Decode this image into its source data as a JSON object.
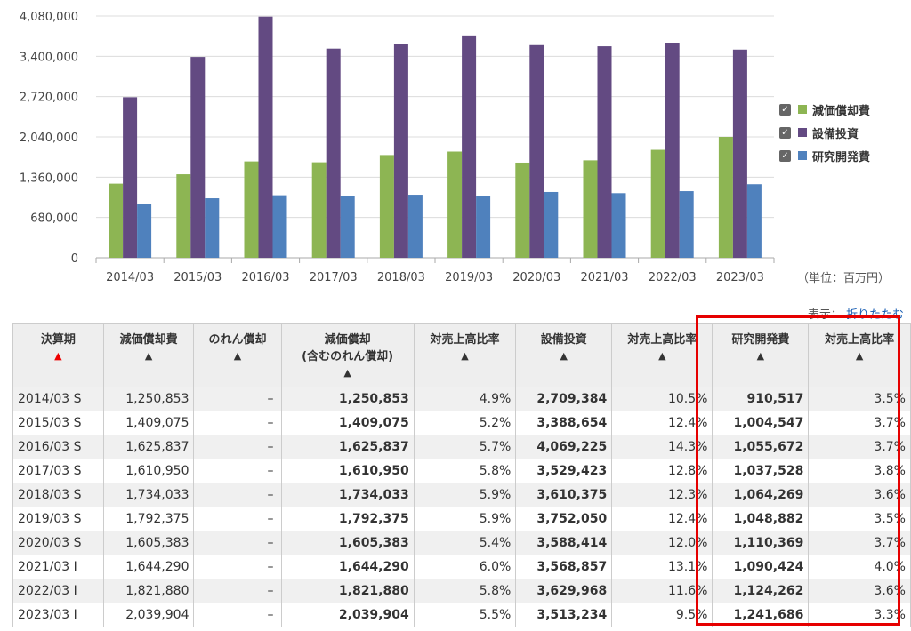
{
  "chart_data": {
    "type": "bar",
    "categories": [
      "2014/03",
      "2015/03",
      "2016/03",
      "2017/03",
      "2018/03",
      "2019/03",
      "2020/03",
      "2021/03",
      "2022/03",
      "2023/03"
    ],
    "series": [
      {
        "name": "減価償却費",
        "color": "#8db553",
        "values": [
          1250853,
          1409075,
          1625837,
          1610950,
          1734033,
          1792375,
          1605383,
          1644290,
          1821880,
          2039904
        ]
      },
      {
        "name": "設備投資",
        "color": "#634a82",
        "values": [
          2709384,
          3388654,
          4069225,
          3529423,
          3610375,
          3752050,
          3588414,
          3568857,
          3629968,
          3513234
        ]
      },
      {
        "name": "研究開発費",
        "color": "#4f81bd",
        "values": [
          910517,
          1004547,
          1055672,
          1037528,
          1064269,
          1048882,
          1110369,
          1090424,
          1124262,
          1241686
        ]
      }
    ],
    "yticks": [
      "0",
      "680,000",
      "1,360,000",
      "2,040,000",
      "2,720,000",
      "3,400,000",
      "4,080,000"
    ],
    "ylim": [
      0,
      4080000
    ],
    "grid": true,
    "legend_position": "right"
  },
  "legend": [
    {
      "label": "減価償却費",
      "check": "✓"
    },
    {
      "label": "設備投資",
      "check": "✓"
    },
    {
      "label": "研究開発費",
      "check": "✓"
    }
  ],
  "unit_label": "（単位：百万円）",
  "display": {
    "label": "表示：",
    "link": "折りたたむ"
  },
  "table": {
    "headers": [
      {
        "label": "決算期",
        "sort": "▲",
        "red": true
      },
      {
        "label": "減価償却費",
        "sort": "▲"
      },
      {
        "label": "のれん償却",
        "sort": "▲"
      },
      {
        "label": "減価償却\n(含むのれん償却)",
        "sort": "▲"
      },
      {
        "label": "対売上高比率",
        "sort": "▲"
      },
      {
        "label": "設備投資",
        "sort": "▲"
      },
      {
        "label": "対売上高比率",
        "sort": "▲"
      },
      {
        "label": "研究開発費",
        "sort": "▲"
      },
      {
        "label": "対売上高比率",
        "sort": "▲"
      }
    ],
    "rows": [
      [
        "2014/03 S",
        "1,250,853",
        "–",
        "1,250,853",
        "4.9%",
        "2,709,384",
        "10.5%",
        "910,517",
        "3.5%"
      ],
      [
        "2015/03 S",
        "1,409,075",
        "–",
        "1,409,075",
        "5.2%",
        "3,388,654",
        "12.4%",
        "1,004,547",
        "3.7%"
      ],
      [
        "2016/03 S",
        "1,625,837",
        "–",
        "1,625,837",
        "5.7%",
        "4,069,225",
        "14.3%",
        "1,055,672",
        "3.7%"
      ],
      [
        "2017/03 S",
        "1,610,950",
        "–",
        "1,610,950",
        "5.8%",
        "3,529,423",
        "12.8%",
        "1,037,528",
        "3.8%"
      ],
      [
        "2018/03 S",
        "1,734,033",
        "–",
        "1,734,033",
        "5.9%",
        "3,610,375",
        "12.3%",
        "1,064,269",
        "3.6%"
      ],
      [
        "2019/03 S",
        "1,792,375",
        "–",
        "1,792,375",
        "5.9%",
        "3,752,050",
        "12.4%",
        "1,048,882",
        "3.5%"
      ],
      [
        "2020/03 S",
        "1,605,383",
        "–",
        "1,605,383",
        "5.4%",
        "3,588,414",
        "12.0%",
        "1,110,369",
        "3.7%"
      ],
      [
        "2021/03 I",
        "1,644,290",
        "–",
        "1,644,290",
        "6.0%",
        "3,568,857",
        "13.1%",
        "1,090,424",
        "4.0%"
      ],
      [
        "2022/03 I",
        "1,821,880",
        "–",
        "1,821,880",
        "5.8%",
        "3,629,968",
        "11.6%",
        "1,124,262",
        "3.6%"
      ],
      [
        "2023/03 I",
        "2,039,904",
        "–",
        "2,039,904",
        "5.5%",
        "3,513,234",
        "9.5%",
        "1,241,686",
        "3.3%"
      ]
    ]
  }
}
